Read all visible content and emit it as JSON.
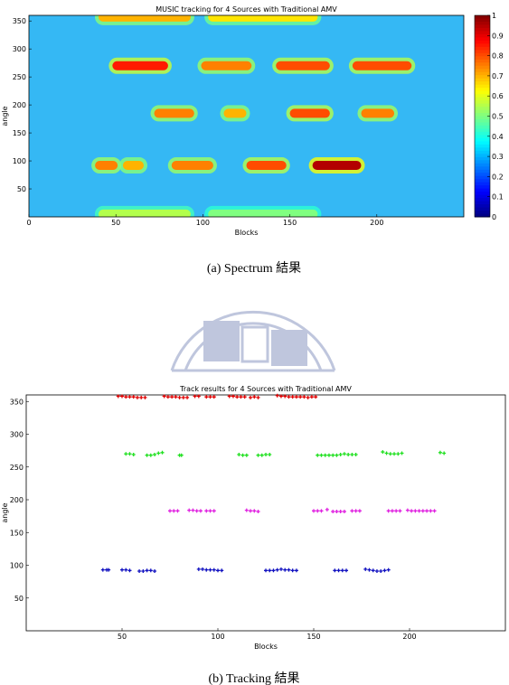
{
  "chart_data": [
    {
      "type": "heatmap",
      "title": "MUSIC tracking for 4 Sources with Traditional AMV",
      "xlabel": "Blocks",
      "ylabel": "angle",
      "xlim": [
        0,
        250
      ],
      "xticks": [
        0,
        50,
        100,
        150,
        200
      ],
      "ylim": [
        0,
        360
      ],
      "yticks": [
        50,
        100,
        150,
        200,
        250,
        300,
        350
      ],
      "clim": [
        0,
        1
      ],
      "cticks": [
        0,
        0.1,
        0.2,
        0.3,
        0.4,
        0.5,
        0.6,
        0.7,
        0.8,
        0.9,
        1
      ],
      "colormap": "jet",
      "peaks": [
        {
          "start": 38,
          "end": 51,
          "angle": 92,
          "level": 0.75
        },
        {
          "start": 54,
          "end": 66,
          "angle": 92,
          "level": 0.7
        },
        {
          "start": 82,
          "end": 106,
          "angle": 92,
          "level": 0.75
        },
        {
          "start": 125,
          "end": 148,
          "angle": 92,
          "level": 0.8
        },
        {
          "start": 163,
          "end": 191,
          "angle": 92,
          "level": 0.95
        },
        {
          "start": 72,
          "end": 95,
          "angle": 185,
          "level": 0.75
        },
        {
          "start": 112,
          "end": 125,
          "angle": 185,
          "level": 0.7
        },
        {
          "start": 150,
          "end": 173,
          "angle": 185,
          "level": 0.8
        },
        {
          "start": 191,
          "end": 210,
          "angle": 185,
          "level": 0.75
        },
        {
          "start": 48,
          "end": 80,
          "angle": 270,
          "level": 0.85
        },
        {
          "start": 99,
          "end": 128,
          "angle": 270,
          "level": 0.75
        },
        {
          "start": 142,
          "end": 173,
          "angle": 270,
          "level": 0.8
        },
        {
          "start": 186,
          "end": 220,
          "angle": 270,
          "level": 0.8
        },
        {
          "start": 40,
          "end": 93,
          "angle": 357,
          "level": 0.7
        },
        {
          "start": 103,
          "end": 166,
          "angle": 357,
          "level": 0.65
        },
        {
          "start": 40,
          "end": 93,
          "angle": 5,
          "level": 0.55
        },
        {
          "start": 103,
          "end": 166,
          "angle": 5,
          "level": 0.5
        }
      ]
    },
    {
      "type": "scatter",
      "title": "Track results for 4 Sources with Traditional AMV",
      "xlabel": "Blocks",
      "ylabel": "angle",
      "xlim": [
        0,
        250
      ],
      "xticks": [
        50,
        100,
        150,
        200
      ],
      "ylim": [
        0,
        360
      ],
      "yticks": [
        50,
        100,
        150,
        200,
        250,
        300,
        350
      ],
      "series": [
        {
          "color": "#e00000",
          "x": [
            48,
            50,
            52,
            54,
            56,
            58,
            60,
            62,
            72,
            74,
            76,
            78,
            80,
            82,
            84,
            88,
            90,
            94,
            96,
            98,
            106,
            108,
            110,
            112,
            114,
            117,
            119,
            121,
            131,
            133,
            135,
            137,
            139,
            141,
            143,
            145,
            147,
            149,
            151
          ],
          "y": [
            358,
            358,
            357,
            357,
            357,
            356,
            356,
            356,
            358,
            357,
            357,
            357,
            356,
            356,
            356,
            358,
            358,
            357,
            357,
            357,
            358,
            358,
            357,
            357,
            357,
            356,
            357,
            356,
            359,
            358,
            358,
            357,
            357,
            357,
            357,
            357,
            356,
            357,
            357
          ]
        },
        {
          "color": "#20e020",
          "x": [
            52,
            54,
            56,
            63,
            65,
            67,
            69,
            71,
            80,
            81,
            111,
            113,
            115,
            121,
            123,
            125,
            127,
            152,
            154,
            156,
            158,
            160,
            162,
            164,
            166,
            168,
            170,
            172,
            186,
            188,
            190,
            192,
            194,
            196,
            216,
            218
          ],
          "y": [
            270,
            270,
            269,
            268,
            268,
            269,
            271,
            272,
            268,
            268,
            269,
            268,
            268,
            268,
            268,
            269,
            269,
            268,
            268,
            268,
            268,
            268,
            268,
            269,
            270,
            269,
            269,
            269,
            273,
            271,
            270,
            270,
            270,
            271,
            272,
            271
          ]
        },
        {
          "color": "#e020e0",
          "x": [
            75,
            77,
            79,
            85,
            87,
            89,
            91,
            94,
            96,
            98,
            115,
            117,
            119,
            121,
            150,
            152,
            154,
            157,
            160,
            162,
            164,
            166,
            170,
            172,
            174,
            189,
            191,
            193,
            195,
            199,
            201,
            203,
            205,
            207,
            209,
            211,
            213
          ],
          "y": [
            183,
            183,
            183,
            184,
            184,
            183,
            183,
            183,
            183,
            183,
            184,
            183,
            183,
            182,
            183,
            183,
            183,
            185,
            182,
            182,
            182,
            182,
            183,
            183,
            183,
            183,
            183,
            183,
            183,
            184,
            183,
            183,
            183,
            183,
            183,
            183,
            183
          ]
        },
        {
          "color": "#1010c0",
          "x": [
            40,
            42,
            43,
            50,
            52,
            54,
            59,
            61,
            63,
            65,
            67,
            90,
            92,
            94,
            96,
            98,
            100,
            102,
            125,
            127,
            129,
            131,
            133,
            135,
            137,
            139,
            141,
            161,
            163,
            165,
            167,
            177,
            179,
            181,
            183,
            185,
            187,
            189
          ],
          "y": [
            93,
            93,
            93,
            93,
            93,
            92,
            91,
            91,
            92,
            92,
            91,
            94,
            94,
            93,
            93,
            93,
            92,
            92,
            92,
            92,
            92,
            93,
            94,
            93,
            93,
            92,
            92,
            92,
            92,
            92,
            92,
            94,
            93,
            92,
            91,
            91,
            92,
            93
          ]
        }
      ]
    }
  ],
  "captions": [
    "(a) Spectrum 結果",
    "(b) Tracking 結果"
  ]
}
